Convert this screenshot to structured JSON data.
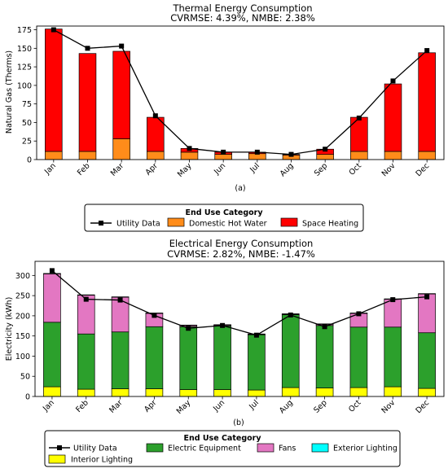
{
  "chart_data": [
    {
      "type": "bar",
      "title": "Thermal Energy Consumption",
      "subtitle": "CVRMSE: 4.39%, NMBE: 2.38%",
      "xlabel": "",
      "ylabel": "Natural Gas (Therms)",
      "caption": "(a)",
      "ylim": [
        0,
        180
      ],
      "yticks": [
        "0",
        "25",
        "50",
        "75",
        "100",
        "125",
        "150",
        "175"
      ],
      "categories": [
        "Jan",
        "Feb",
        "Mar",
        "Apr",
        "May",
        "Jun",
        "Jul",
        "Aug",
        "Sep",
        "Oct",
        "Nov",
        "Dec"
      ],
      "stacked": true,
      "series": [
        {
          "name": "Domestic Hot Water",
          "color": "#ff8c1a",
          "values": [
            11,
            11,
            28,
            11,
            10,
            7,
            8,
            6,
            7,
            11,
            11,
            11
          ]
        },
        {
          "name": "Space Heating",
          "color": "#ff0000",
          "values": [
            165,
            132,
            118,
            46,
            5,
            3,
            2,
            1,
            7,
            46,
            91,
            133
          ]
        }
      ],
      "line": {
        "name": "Utility Data",
        "color": "#000000",
        "values": [
          175,
          150,
          153,
          59,
          15,
          10,
          10,
          7,
          14,
          56,
          106,
          147
        ]
      },
      "legend": {
        "title": "End Use Category",
        "entries": [
          {
            "label": "Utility Data",
            "kind": "line",
            "color": "#000000"
          },
          {
            "label": "Domestic Hot Water",
            "kind": "patch",
            "color": "#ff8c1a"
          },
          {
            "label": "Space Heating",
            "kind": "patch",
            "color": "#ff0000"
          }
        ]
      },
      "grid": false
    },
    {
      "type": "bar",
      "title": "Electrical Energy Consumption",
      "subtitle": "CVRMSE: 2.82%, NMBE: -1.47%",
      "xlabel": "",
      "ylabel": "Electricity (kWh)",
      "caption": "(b)",
      "ylim": [
        0,
        335
      ],
      "yticks": [
        "0",
        "50",
        "100",
        "150",
        "200",
        "250",
        "300"
      ],
      "categories": [
        "Jan",
        "Feb",
        "Mar",
        "Apr",
        "May",
        "Jun",
        "Jul",
        "Aug",
        "Sep",
        "Oct",
        "Nov",
        "Dec"
      ],
      "stacked": true,
      "series": [
        {
          "name": "Interior Lighting",
          "color": "#ffff00",
          "values": [
            24,
            18,
            19,
            19,
            17,
            17,
            16,
            22,
            21,
            22,
            24,
            20
          ]
        },
        {
          "name": "Electric Equipment",
          "color": "#2ca02c",
          "values": [
            160,
            137,
            141,
            154,
            156,
            158,
            137,
            181,
            155,
            150,
            148,
            138
          ]
        },
        {
          "name": "Fans",
          "color": "#e377c2",
          "values": [
            120,
            96,
            86,
            33,
            3,
            2,
            1,
            1,
            3,
            34,
            69,
            96
          ]
        },
        {
          "name": "Exterior Lighting",
          "color": "#00ffff",
          "values": [
            1,
            1,
            1,
            1,
            1,
            1,
            1,
            1,
            1,
            1,
            1,
            1
          ]
        }
      ],
      "line": {
        "name": "Utility Data",
        "color": "#000000",
        "values": [
          312,
          241,
          239,
          201,
          169,
          176,
          152,
          202,
          173,
          205,
          240,
          247
        ]
      },
      "legend": {
        "title": "End Use Category",
        "entries": [
          {
            "label": "Utility Data",
            "kind": "line",
            "color": "#000000"
          },
          {
            "label": "Electric Equipment",
            "kind": "patch",
            "color": "#2ca02c"
          },
          {
            "label": "Fans",
            "kind": "patch",
            "color": "#e377c2"
          },
          {
            "label": "Exterior Lighting",
            "kind": "patch",
            "color": "#00ffff"
          },
          {
            "label": "Interior Lighting",
            "kind": "patch",
            "color": "#ffff00"
          }
        ]
      },
      "grid": false
    }
  ]
}
